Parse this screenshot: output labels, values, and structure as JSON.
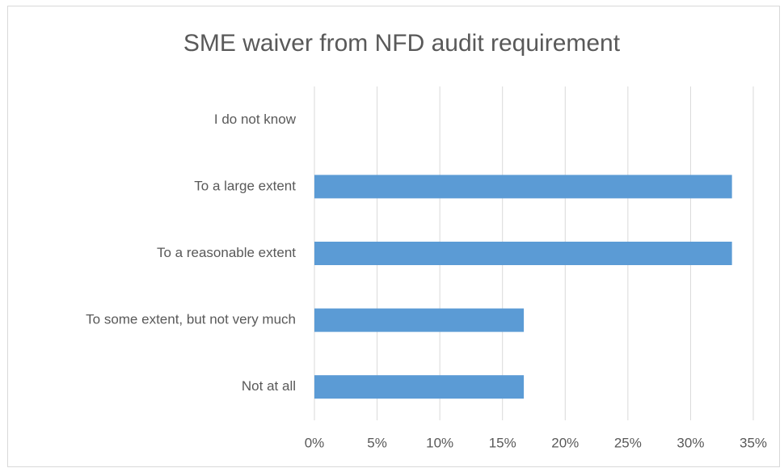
{
  "chart_data": {
    "type": "bar",
    "orientation": "horizontal",
    "title": "SME waiver from NFD audit requirement",
    "categories": [
      "I do not know",
      "To a large extent",
      "To a reasonable extent",
      "To some extent, but not very much",
      "Not at all"
    ],
    "values": [
      0,
      33.3,
      33.3,
      16.7,
      16.7
    ],
    "color": "#5b9bd5",
    "xlim": [
      0,
      35
    ],
    "xticks": [
      {
        "value": 0,
        "label": "0%"
      },
      {
        "value": 5,
        "label": "5%"
      },
      {
        "value": 10,
        "label": "10%"
      },
      {
        "value": 15,
        "label": "15%"
      },
      {
        "value": 20,
        "label": "20%"
      },
      {
        "value": 25,
        "label": "25%"
      },
      {
        "value": 30,
        "label": "30%"
      },
      {
        "value": 35,
        "label": "35%"
      }
    ],
    "grid": true
  }
}
